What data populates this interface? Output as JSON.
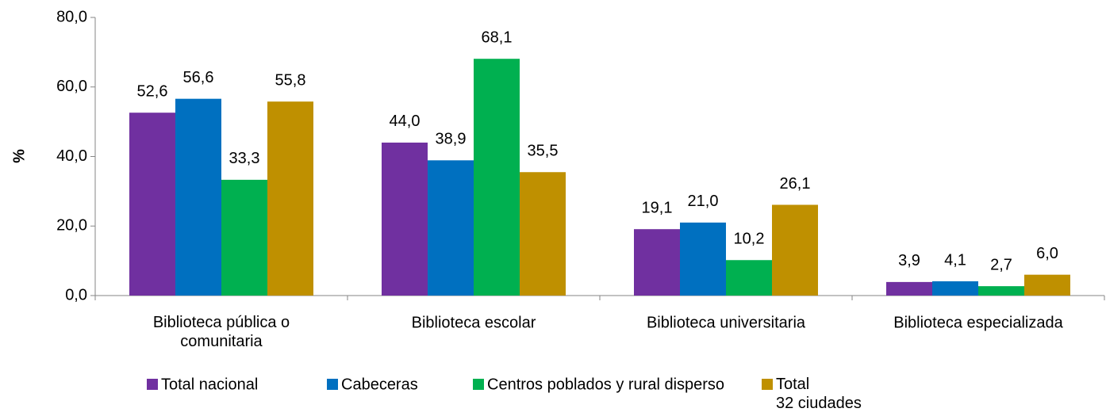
{
  "chart_data": {
    "type": "bar",
    "y_label": "%",
    "categories": [
      "Biblioteca pública o\ncomunitaria",
      "Biblioteca escolar",
      "Biblioteca universitaria",
      "Biblioteca especializada"
    ],
    "series": [
      {
        "name": "Total nacional",
        "color": "#7030a0",
        "values": [
          52.6,
          44.0,
          19.1,
          3.9
        ],
        "value_labels": [
          "52,6",
          "44,0",
          "19,1",
          "3,9"
        ]
      },
      {
        "name": "Cabeceras",
        "color": "#0070c0",
        "values": [
          56.6,
          38.9,
          21.0,
          4.1
        ],
        "value_labels": [
          "56,6",
          "38,9",
          "21,0",
          "4,1"
        ]
      },
      {
        "name": "Centros poblados y rural disperso",
        "color": "#00b050",
        "values": [
          33.3,
          68.1,
          10.2,
          2.7
        ],
        "value_labels": [
          "33,3",
          "68,1",
          "10,2",
          "2,7"
        ]
      },
      {
        "name": "Total\n32 ciudades",
        "color": "#bf9000",
        "values": [
          55.8,
          35.5,
          26.1,
          6.0
        ],
        "value_labels": [
          "55,8",
          "35,5",
          "26,1",
          "6,0"
        ]
      }
    ],
    "ylim": [
      0,
      80
    ],
    "yticks": [
      {
        "value": 0,
        "label": "0,0"
      },
      {
        "value": 20,
        "label": "20,0"
      },
      {
        "value": 40,
        "label": "40,0"
      },
      {
        "value": 60,
        "label": "60,0"
      },
      {
        "value": 80,
        "label": "80,0"
      }
    ],
    "legend": "bottom",
    "grid": false
  }
}
